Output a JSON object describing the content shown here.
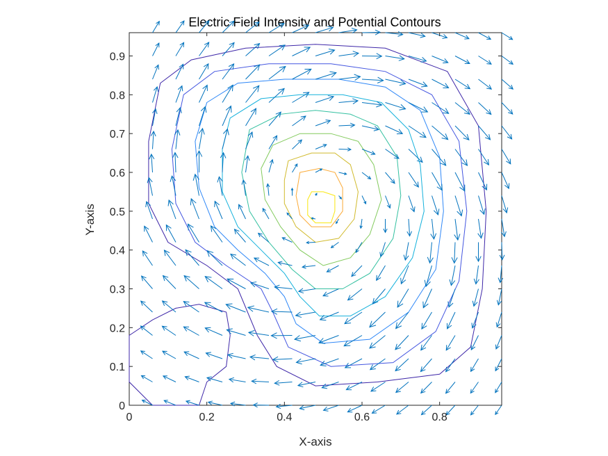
{
  "chart_data": {
    "type": "contour",
    "title": "Electric Field Intensity and Potential Contours",
    "xlabel": "X-axis",
    "ylabel": "Y-axis",
    "xlim": [
      0,
      0.96
    ],
    "ylim": [
      0,
      0.96
    ],
    "xticks": [
      "0",
      "0.2",
      "0.4",
      "0.6",
      "0.8"
    ],
    "yticks": [
      "0",
      "0.1",
      "0.2",
      "0.3",
      "0.4",
      "0.5",
      "0.6",
      "0.7",
      "0.8",
      "0.9"
    ],
    "grid": false,
    "field": {
      "type": "quiver",
      "color": "#0072BD",
      "grid_spacing": 0.06
    },
    "contours": [
      {
        "level": 1,
        "color": "#3d26a8",
        "points": [
          [
            0.08,
            0.83
          ],
          [
            0.16,
            0.89
          ],
          [
            0.3,
            0.92
          ],
          [
            0.48,
            0.93
          ],
          [
            0.66,
            0.92
          ],
          [
            0.82,
            0.86
          ],
          [
            0.9,
            0.72
          ],
          [
            0.92,
            0.5
          ],
          [
            0.91,
            0.3
          ],
          [
            0.88,
            0.15
          ],
          [
            0.8,
            0.08
          ],
          [
            0.64,
            0.06
          ],
          [
            0.48,
            0.05
          ],
          [
            0.38,
            0.1
          ],
          [
            0.33,
            0.18
          ],
          [
            0.28,
            0.3
          ],
          [
            0.2,
            0.36
          ],
          [
            0.1,
            0.42
          ],
          [
            0.05,
            0.52
          ],
          [
            0.05,
            0.68
          ]
        ]
      },
      {
        "level": 1,
        "color": "#3d26a8",
        "points": [
          [
            0.0,
            0.18
          ],
          [
            0.06,
            0.22
          ],
          [
            0.12,
            0.25
          ],
          [
            0.18,
            0.26
          ],
          [
            0.25,
            0.24
          ],
          [
            0.26,
            0.18
          ],
          [
            0.25,
            0.1
          ],
          [
            0.2,
            0.06
          ],
          [
            0.18,
            0.0
          ],
          [
            0.06,
            0.0
          ],
          [
            0.0,
            0.06
          ]
        ]
      },
      {
        "level": 2,
        "color": "#4355e0",
        "points": [
          [
            0.14,
            0.8
          ],
          [
            0.22,
            0.86
          ],
          [
            0.36,
            0.88
          ],
          [
            0.52,
            0.88
          ],
          [
            0.66,
            0.86
          ],
          [
            0.78,
            0.8
          ],
          [
            0.85,
            0.68
          ],
          [
            0.87,
            0.5
          ],
          [
            0.85,
            0.32
          ],
          [
            0.79,
            0.19
          ],
          [
            0.68,
            0.11
          ],
          [
            0.52,
            0.1
          ],
          [
            0.41,
            0.15
          ],
          [
            0.37,
            0.24
          ],
          [
            0.34,
            0.3
          ],
          [
            0.25,
            0.36
          ],
          [
            0.17,
            0.42
          ],
          [
            0.12,
            0.52
          ],
          [
            0.11,
            0.66
          ]
        ]
      },
      {
        "level": 3,
        "color": "#2e87f7",
        "points": [
          [
            0.2,
            0.78
          ],
          [
            0.28,
            0.83
          ],
          [
            0.4,
            0.84
          ],
          [
            0.54,
            0.84
          ],
          [
            0.66,
            0.82
          ],
          [
            0.75,
            0.76
          ],
          [
            0.8,
            0.64
          ],
          [
            0.81,
            0.5
          ],
          [
            0.79,
            0.35
          ],
          [
            0.72,
            0.24
          ],
          [
            0.62,
            0.17
          ],
          [
            0.5,
            0.16
          ],
          [
            0.43,
            0.21
          ],
          [
            0.4,
            0.28
          ],
          [
            0.35,
            0.34
          ],
          [
            0.28,
            0.4
          ],
          [
            0.22,
            0.46
          ],
          [
            0.18,
            0.56
          ],
          [
            0.17,
            0.68
          ]
        ]
      },
      {
        "level": 4,
        "color": "#14b1dc",
        "points": [
          [
            0.26,
            0.74
          ],
          [
            0.34,
            0.79
          ],
          [
            0.44,
            0.8
          ],
          [
            0.55,
            0.8
          ],
          [
            0.65,
            0.78
          ],
          [
            0.72,
            0.71
          ],
          [
            0.75,
            0.62
          ],
          [
            0.76,
            0.5
          ],
          [
            0.73,
            0.38
          ],
          [
            0.66,
            0.28
          ],
          [
            0.57,
            0.23
          ],
          [
            0.49,
            0.23
          ],
          [
            0.44,
            0.28
          ],
          [
            0.4,
            0.34
          ],
          [
            0.34,
            0.4
          ],
          [
            0.28,
            0.46
          ],
          [
            0.24,
            0.55
          ],
          [
            0.24,
            0.66
          ]
        ]
      },
      {
        "level": 5,
        "color": "#33c0a0",
        "points": [
          [
            0.31,
            0.71
          ],
          [
            0.39,
            0.75
          ],
          [
            0.48,
            0.76
          ],
          [
            0.57,
            0.75
          ],
          [
            0.64,
            0.72
          ],
          [
            0.69,
            0.64
          ],
          [
            0.7,
            0.54
          ],
          [
            0.68,
            0.43
          ],
          [
            0.62,
            0.34
          ],
          [
            0.55,
            0.3
          ],
          [
            0.48,
            0.3
          ],
          [
            0.42,
            0.35
          ],
          [
            0.36,
            0.42
          ],
          [
            0.31,
            0.5
          ],
          [
            0.29,
            0.6
          ]
        ]
      },
      {
        "level": 6,
        "color": "#82ca5c",
        "points": [
          [
            0.37,
            0.67
          ],
          [
            0.44,
            0.7
          ],
          [
            0.52,
            0.7
          ],
          [
            0.59,
            0.68
          ],
          [
            0.63,
            0.62
          ],
          [
            0.65,
            0.53
          ],
          [
            0.62,
            0.44
          ],
          [
            0.57,
            0.38
          ],
          [
            0.5,
            0.36
          ],
          [
            0.44,
            0.4
          ],
          [
            0.39,
            0.46
          ],
          [
            0.35,
            0.53
          ],
          [
            0.34,
            0.61
          ]
        ]
      },
      {
        "level": 7,
        "color": "#d1ba2c",
        "points": [
          [
            0.41,
            0.63
          ],
          [
            0.47,
            0.65
          ],
          [
            0.53,
            0.65
          ],
          [
            0.57,
            0.62
          ],
          [
            0.59,
            0.55
          ],
          [
            0.58,
            0.48
          ],
          [
            0.54,
            0.43
          ],
          [
            0.48,
            0.42
          ],
          [
            0.43,
            0.46
          ],
          [
            0.4,
            0.52
          ],
          [
            0.4,
            0.58
          ]
        ]
      },
      {
        "level": 8,
        "color": "#fbaa36",
        "points": [
          [
            0.44,
            0.6
          ],
          [
            0.49,
            0.61
          ],
          [
            0.53,
            0.6
          ],
          [
            0.55,
            0.56
          ],
          [
            0.55,
            0.5
          ],
          [
            0.52,
            0.46
          ],
          [
            0.47,
            0.46
          ],
          [
            0.44,
            0.49
          ],
          [
            0.43,
            0.54
          ]
        ]
      },
      {
        "level": 9,
        "color": "#f9e70f",
        "points": [
          [
            0.47,
            0.55
          ],
          [
            0.5,
            0.55
          ],
          [
            0.53,
            0.54
          ],
          [
            0.53,
            0.5
          ],
          [
            0.52,
            0.47
          ],
          [
            0.48,
            0.47
          ],
          [
            0.46,
            0.49
          ],
          [
            0.46,
            0.53
          ]
        ]
      }
    ]
  }
}
